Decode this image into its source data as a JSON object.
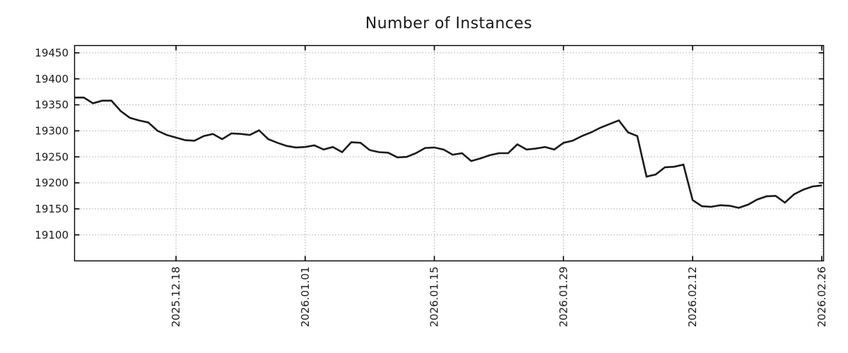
{
  "chart_data": {
    "type": "line",
    "title": "Number of Instances",
    "series": [
      {
        "name": "instances",
        "values": [
          19364,
          19364,
          19353,
          19358,
          19358,
          19338,
          19325,
          19320,
          19316,
          19300,
          19292,
          19287,
          19282,
          19281,
          19290,
          19294,
          19284,
          19295,
          19294,
          19292,
          19301,
          19284,
          19277,
          19271,
          19268,
          19269,
          19272,
          19264,
          19269,
          19259,
          19278,
          19277,
          19263,
          19259,
          19258,
          19249,
          19250,
          19257,
          19267,
          19268,
          19264,
          19254,
          19257,
          19242,
          19247,
          19253,
          19257,
          19257,
          19274,
          19264,
          19266,
          19269,
          19264,
          19277,
          19281,
          19290,
          19297,
          19306,
          19313,
          19320,
          19297,
          19290,
          19212,
          19216,
          19230,
          19231,
          19235,
          19167,
          19155,
          19154,
          19157,
          19156,
          19152,
          19158,
          19168,
          19174,
          19175,
          19162,
          19178,
          19187,
          19193,
          19195
        ]
      }
    ],
    "x_tick_labels": [
      "2025.12.18",
      "2026.01.01",
      "2026.01.15",
      "2026.01.29",
      "2026.02.12",
      "2026.02.26"
    ],
    "x_tick_point_indices": [
      11,
      25,
      39,
      53,
      67,
      81
    ],
    "y_ticks": [
      19100,
      19150,
      19200,
      19250,
      19300,
      19350,
      19400,
      19450
    ],
    "ylim": [
      19050,
      19464
    ],
    "xlim_points": [
      0,
      81.2
    ],
    "grid": true,
    "legend": false,
    "line_color": "#1b1b1b",
    "grid_color": "#b0b0b0",
    "axis_color": "#000000",
    "text_color": "#1a1a1a",
    "background": "#ffffff"
  }
}
